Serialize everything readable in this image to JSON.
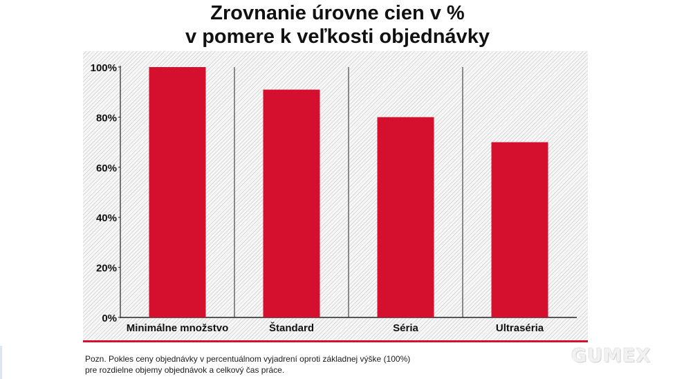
{
  "title": {
    "line1": "Zrovnanie úrovne cien v %",
    "line2": "v pomere k veľkosti objednávky"
  },
  "chart_data": {
    "type": "bar",
    "title": "Zrovnanie úrovne cien v % v pomere k veľkosti objednávky",
    "categories": [
      "Minimálne množstvo",
      "Štandard",
      "Séria",
      "Ultraséria"
    ],
    "values": [
      100,
      91,
      80,
      70
    ],
    "ylim": [
      0,
      100
    ],
    "yticks": [
      0,
      20,
      40,
      60,
      80,
      100
    ],
    "yticklabels": [
      "0%",
      "20%",
      "40%",
      "60%",
      "80%",
      "100%"
    ],
    "xlabel": "",
    "ylabel": "",
    "bar_color": "#d5102f",
    "grid": false
  },
  "note": {
    "line1": "Pozn. Pokles ceny objednávky v percentuálnom vyjadrení oproti základnej výške (100%)",
    "line2": "pre rozdielne objemy objednávok a celkový čas práce."
  },
  "logo": "GUMEX",
  "colors": {
    "accent": "#d5102f",
    "background": "#ffffff"
  }
}
